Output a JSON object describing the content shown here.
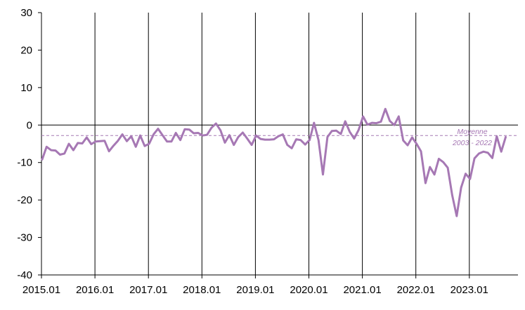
{
  "chart_data": {
    "type": "line",
    "x_start": "2015.01",
    "y_ticks": [
      "30",
      "20",
      "10",
      "0",
      "-10",
      "-20",
      "-30",
      "-40"
    ],
    "x_ticks": [
      "2015.01",
      "2016.01",
      "2017.01",
      "2018.01",
      "2019.01",
      "2020.01",
      "2021.01",
      "2022.01",
      "2023.01"
    ],
    "ylim": [
      -40,
      30
    ],
    "grid": "vertical lines at each January",
    "reference_line": {
      "value": -2.8,
      "label_line1": "Moyenne",
      "label_line2": "2003 - 2022",
      "style": "dashed",
      "color": "#a678b4"
    },
    "series": [
      {
        "color": "#a678b4",
        "values": [
          -9.2,
          -5.8,
          -6.7,
          -6.8,
          -7.9,
          -7.6,
          -5,
          -6.7,
          -4.8,
          -4.9,
          -3.3,
          -5.1,
          -4.4,
          -4.3,
          -4.2,
          -7,
          -5.5,
          -4.2,
          -2.5,
          -4.3,
          -3,
          -5.8,
          -2.8,
          -5.6,
          -5,
          -2.5,
          -1,
          -2.7,
          -4.4,
          -4.4,
          -2.1,
          -4,
          -1.1,
          -1.2,
          -2.2,
          -2.1,
          -2.8,
          -2.6,
          -0.7,
          0.4,
          -1.4,
          -4.7,
          -2.7,
          -5.3,
          -3.2,
          -2,
          -3.6,
          -5.3,
          -2.8,
          -3.7,
          -3.9,
          -3.9,
          -3.8,
          -3,
          -2.5,
          -5.3,
          -6.2,
          -3.8,
          -4,
          -5.2,
          -4,
          0.6,
          -4,
          -13.2,
          -3.2,
          -1.6,
          -1.5,
          -2.4,
          1,
          -1.8,
          -3.6,
          -1.3,
          2.3,
          0.1,
          0.6,
          0.5,
          0.9,
          4.3,
          1.1,
          0,
          2.3,
          -4.1,
          -5.4,
          -3.3,
          -5,
          -7,
          -15.5,
          -11.2,
          -13.2,
          -9,
          -9.9,
          -11.4,
          -18.7,
          -24.3,
          -16.7,
          -13,
          -14.4,
          -8.9,
          -7.6,
          -7.1,
          -7.4,
          -8.8,
          -3,
          -7.1,
          -3.2
        ]
      }
    ]
  }
}
